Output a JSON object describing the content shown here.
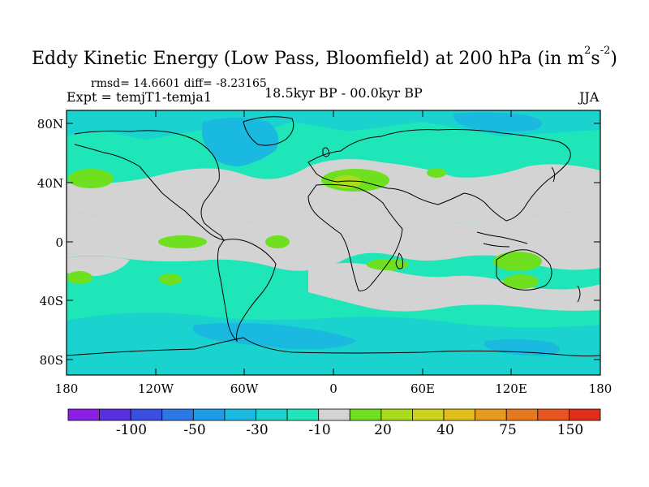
{
  "title": {
    "main": "Eddy Kinetic Energy (Low Pass, Bloomfield) at 200 hPa (in m",
    "sup1": "2",
    "mid": "s",
    "sup2": "-2",
    "end": ")"
  },
  "stats": "rmsd= 14.6601  diff= -8.23165",
  "expt": "Expt = temjT1-temja1",
  "period": "18.5kyr BP - 00.0kyr BP",
  "season": "JJA",
  "lat_labels": [
    "80N",
    "40N",
    "0",
    "40S",
    "80S"
  ],
  "lon_labels": [
    "180",
    "120W",
    "60W",
    "0",
    "60E",
    "120E",
    "180"
  ],
  "colorbar": {
    "colors": [
      "#8c1fe6",
      "#5a2fe0",
      "#3a4fe0",
      "#2e78e6",
      "#1e9be6",
      "#19b9e0",
      "#1ad3cf",
      "#1fe6b8",
      "#d3d3d3",
      "#6ee01f",
      "#a9dc1c",
      "#cdd21a",
      "#e0bf1a",
      "#e69a1f",
      "#e6781e",
      "#e6561e",
      "#e0301a"
    ],
    "labels": [
      "-100",
      "-50",
      "-30",
      "-10",
      "20",
      "40",
      "75",
      "150"
    ]
  },
  "colors": {
    "land_fill": "#d3d3d3",
    "teal": "#1fe6b8",
    "cyan": "#1ad3cf",
    "light_blue": "#19b9e0",
    "blue": "#1e9be6",
    "green": "#6ee01f",
    "yellow_green": "#a9dc1c",
    "coast": "#000000"
  }
}
